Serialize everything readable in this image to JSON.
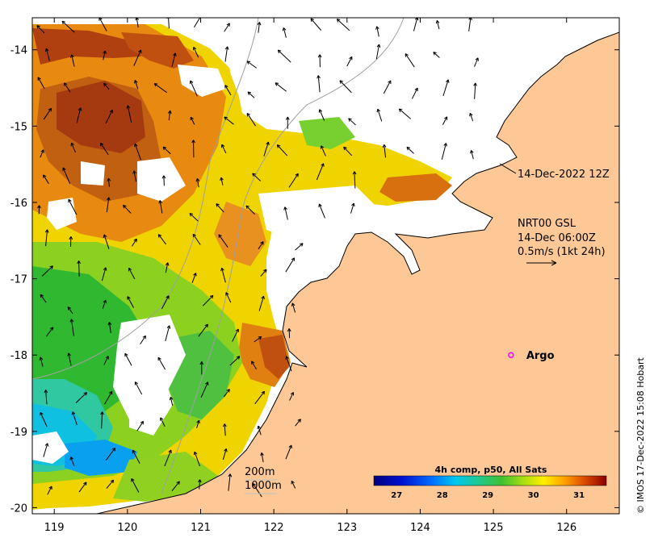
{
  "map": {
    "axes": {
      "x_ticks": [
        "119",
        "120",
        "121",
        "122",
        "123",
        "124",
        "125",
        "126"
      ],
      "y_ticks": [
        "-14",
        "-15",
        "-16",
        "-17",
        "-18",
        "-19",
        "-20"
      ],
      "lon_range": [
        118.7,
        126.72
      ],
      "lat_range": [
        -20.08,
        -13.58
      ]
    },
    "annotations": {
      "sst_time": "14-Dec-2022 12Z",
      "current_title": "NRT00 GSL",
      "current_time": "14-Dec 06:00Z",
      "current_scale": "0.5m/s (1kt 24h)",
      "argo_label": "Argo",
      "iso_200": "200m",
      "iso_1000": "1000m"
    },
    "colorbar": {
      "title": "4h comp, p50, All Sats",
      "ticks": [
        "27",
        "28",
        "29",
        "30",
        "31"
      ],
      "range": [
        26.5,
        31.6
      ]
    },
    "argo_float": {
      "lon": 125.24,
      "lat": -18.0
    },
    "copyright": "© IMOS 17-Dec-2022 15:08 Hobart",
    "colors": {
      "land": "#fdc895",
      "no_data": "#ffffff",
      "argo_marker": "#ff00ff"
    }
  }
}
